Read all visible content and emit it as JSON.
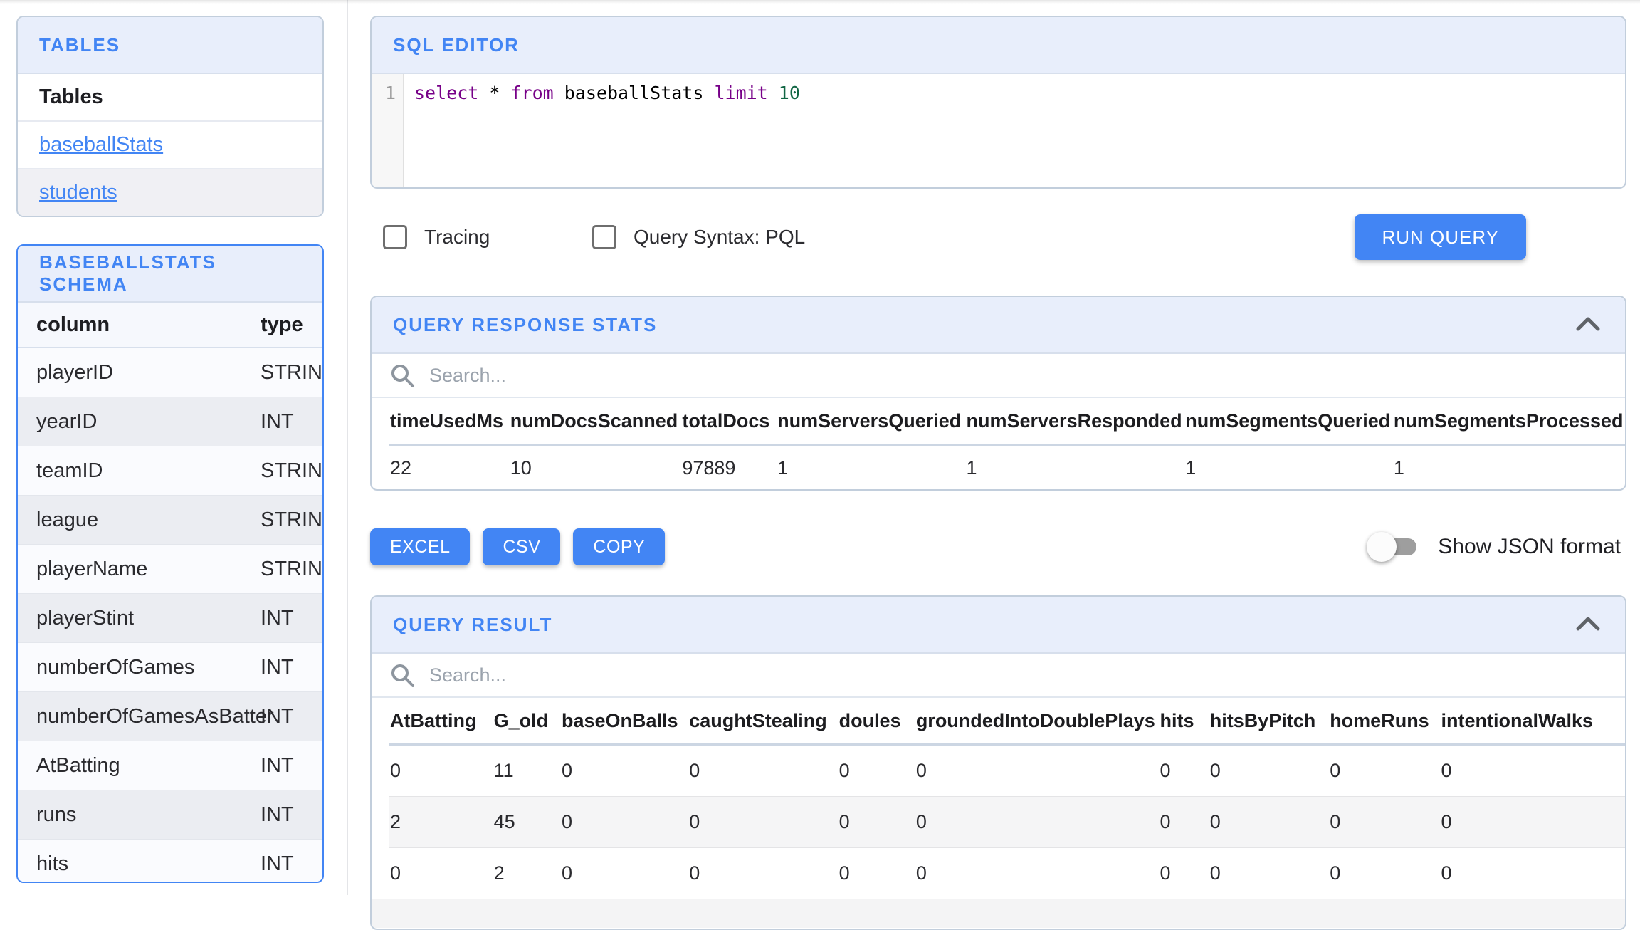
{
  "colors": {
    "accent": "#4285f4",
    "panel_header_bg": "#e8eefb",
    "keyword": "#770088",
    "number": "#116644"
  },
  "sidebar": {
    "tables_panel": {
      "title": "TABLES",
      "header": "Tables",
      "items": [
        "baseballStats",
        "students"
      ]
    },
    "schema_panel": {
      "title": "BASEBALLSTATS SCHEMA",
      "headers": [
        "column",
        "type"
      ],
      "rows": [
        {
          "column": "playerID",
          "type": "STRING"
        },
        {
          "column": "yearID",
          "type": "INT"
        },
        {
          "column": "teamID",
          "type": "STRING"
        },
        {
          "column": "league",
          "type": "STRING"
        },
        {
          "column": "playerName",
          "type": "STRING"
        },
        {
          "column": "playerStint",
          "type": "INT"
        },
        {
          "column": "numberOfGames",
          "type": "INT"
        },
        {
          "column": "numberOfGamesAsBatter",
          "type": "INT"
        },
        {
          "column": "AtBatting",
          "type": "INT"
        },
        {
          "column": "runs",
          "type": "INT"
        },
        {
          "column": "hits",
          "type": "INT"
        }
      ]
    }
  },
  "editor": {
    "title": "SQL EDITOR",
    "line_number": "1",
    "query_text": "select * from baseballStats limit 10",
    "tokens": [
      {
        "t": "select",
        "c": "keyword"
      },
      {
        "t": " * ",
        "c": "plain"
      },
      {
        "t": "from",
        "c": "keyword"
      },
      {
        "t": " baseballStats ",
        "c": "plain"
      },
      {
        "t": "limit",
        "c": "keyword"
      },
      {
        "t": " ",
        "c": "plain"
      },
      {
        "t": "10",
        "c": "number"
      }
    ]
  },
  "controls": {
    "tracing_label": "Tracing",
    "tracing_checked": false,
    "pql_label": "Query Syntax: PQL",
    "pql_checked": false,
    "run_label": "RUN QUERY"
  },
  "stats": {
    "title": "QUERY RESPONSE STATS",
    "search_placeholder": "Search...",
    "headers": [
      "timeUsedMs",
      "numDocsScanned",
      "totalDocs",
      "numServersQueried",
      "numServersResponded",
      "numSegmentsQueried",
      "numSegmentsProcessed"
    ],
    "rows": [
      [
        "22",
        "10",
        "97889",
        "1",
        "1",
        "1",
        "1"
      ]
    ]
  },
  "export": {
    "excel": "EXCEL",
    "csv": "CSV",
    "copy": "COPY",
    "json_toggle_label": "Show JSON format",
    "json_toggle_on": false
  },
  "result": {
    "title": "QUERY RESULT",
    "search_placeholder": "Search...",
    "headers": [
      "AtBatting",
      "G_old",
      "baseOnBalls",
      "caughtStealing",
      "doules",
      "groundedIntoDoublePlays",
      "hits",
      "hitsByPitch",
      "homeRuns",
      "intentionalWalks"
    ],
    "rows": [
      [
        "0",
        "11",
        "0",
        "0",
        "0",
        "0",
        "0",
        "0",
        "0",
        "0"
      ],
      [
        "2",
        "45",
        "0",
        "0",
        "0",
        "0",
        "0",
        "0",
        "0",
        "0"
      ],
      [
        "0",
        "2",
        "0",
        "0",
        "0",
        "0",
        "0",
        "0",
        "0",
        "0"
      ]
    ]
  }
}
